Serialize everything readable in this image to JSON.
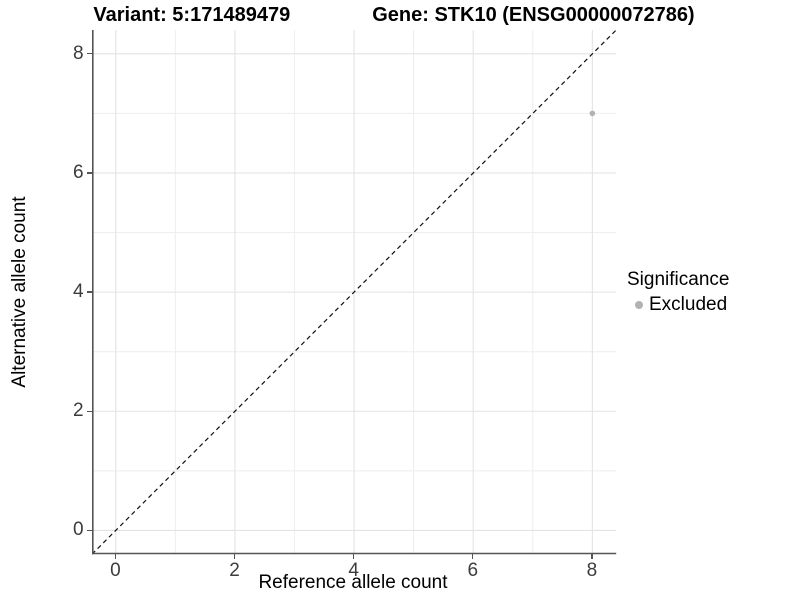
{
  "title": {
    "variant": "Variant: 5:171489479",
    "gene": "Gene: STK10 (ENSG00000072786)"
  },
  "chart_data": {
    "type": "scatter",
    "title": "Variant: 5:171489479   Gene: STK10 (ENSG00000072786)",
    "xlabel": "Reference allele count",
    "ylabel": "Alternative allele count",
    "xlim": [
      -0.4,
      8.4
    ],
    "ylim": [
      -0.4,
      8.4
    ],
    "x_ticks": [
      0,
      2,
      4,
      6,
      8
    ],
    "y_ticks": [
      0,
      2,
      4,
      6,
      8
    ],
    "minor_grid_x": [
      1,
      3,
      5,
      7
    ],
    "minor_grid_y": [
      1,
      3,
      5,
      7
    ],
    "grid": "major and minor gridlines on, white panel background",
    "points": [
      {
        "x": 8,
        "y": 7,
        "significance": "Excluded"
      }
    ],
    "reference_line": {
      "kind": "identity y=x",
      "style": "dashed",
      "from": [
        -0.4,
        -0.4
      ],
      "to": [
        8.4,
        8.4
      ]
    },
    "legend": {
      "title": "Significance",
      "position": "right",
      "entries": [
        {
          "label": "Excluded",
          "marker": "circle",
          "color": "#b2b2b2"
        }
      ]
    }
  },
  "colors": {
    "background": "#ffffff",
    "axis_line": "#545454",
    "tick_label": "#3c3c3c",
    "grid_major": "#e3e3e3",
    "grid_minor": "#eeeeee",
    "point": "#b2b2b2",
    "dashed_line": "#111111"
  }
}
